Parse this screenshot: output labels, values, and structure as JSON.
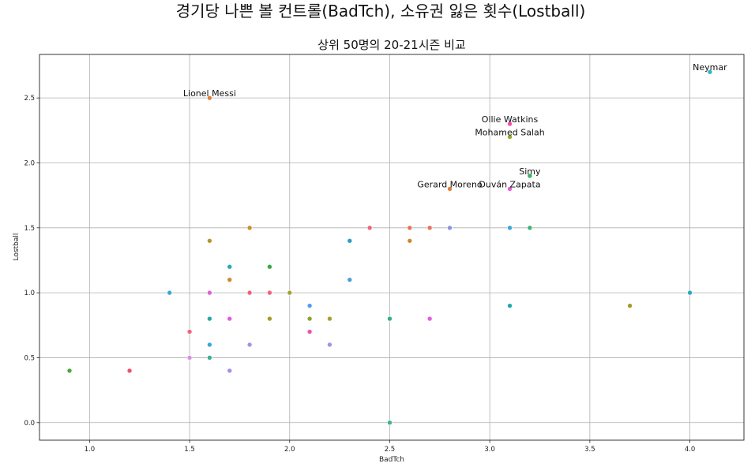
{
  "chart_data": {
    "type": "scatter",
    "suptitle": "경기당 나쁜 볼 컨트롤(BadTch), 소유권 잃은 횟수(Lostball)",
    "title": "상위 50명의 20-21시즌 비교",
    "xlabel": "BadTch",
    "ylabel": "Lostball",
    "xlim": [
      0.75,
      4.27
    ],
    "ylim": [
      -0.135,
      2.835
    ],
    "xticks": [
      1.0,
      1.5,
      2.0,
      2.5,
      3.0,
      3.5,
      4.0
    ],
    "yticks": [
      0.0,
      0.5,
      1.0,
      1.5,
      2.0,
      2.5
    ],
    "xtick_labels": [
      "1.0",
      "1.5",
      "2.0",
      "2.5",
      "3.0",
      "3.5",
      "4.0"
    ],
    "ytick_labels": [
      "0.0",
      "0.5",
      "1.0",
      "1.5",
      "2.0",
      "2.5"
    ],
    "grid": true,
    "points": [
      {
        "x": 4.1,
        "y": 2.7,
        "color": "#2fb5c4"
      },
      {
        "x": 1.6,
        "y": 2.5,
        "color": "#e0813a"
      },
      {
        "x": 3.1,
        "y": 2.3,
        "color": "#f24fb1"
      },
      {
        "x": 3.1,
        "y": 2.2,
        "color": "#9ca826"
      },
      {
        "x": 3.2,
        "y": 1.9,
        "color": "#39b36b"
      },
      {
        "x": 2.8,
        "y": 1.8,
        "color": "#e0813a"
      },
      {
        "x": 3.1,
        "y": 1.8,
        "color": "#e25ddc"
      },
      {
        "x": 1.8,
        "y": 1.5,
        "color": "#c8902a"
      },
      {
        "x": 2.4,
        "y": 1.5,
        "color": "#f2627a"
      },
      {
        "x": 2.6,
        "y": 1.5,
        "color": "#e5735b"
      },
      {
        "x": 2.7,
        "y": 1.5,
        "color": "#e5735b"
      },
      {
        "x": 2.8,
        "y": 1.5,
        "color": "#8f8fe8"
      },
      {
        "x": 3.1,
        "y": 1.5,
        "color": "#3aa7d8"
      },
      {
        "x": 3.2,
        "y": 1.5,
        "color": "#3cb37a"
      },
      {
        "x": 1.6,
        "y": 1.4,
        "color": "#b7952a"
      },
      {
        "x": 2.3,
        "y": 1.4,
        "color": "#2a9fc2"
      },
      {
        "x": 2.6,
        "y": 1.4,
        "color": "#c88c2d"
      },
      {
        "x": 1.7,
        "y": 1.2,
        "color": "#2aa9b9"
      },
      {
        "x": 1.9,
        "y": 1.2,
        "color": "#3aa84a"
      },
      {
        "x": 1.7,
        "y": 1.1,
        "color": "#c88c2d"
      },
      {
        "x": 2.3,
        "y": 1.1,
        "color": "#4aa0d8"
      },
      {
        "x": 1.4,
        "y": 1.0,
        "color": "#3aa7d8"
      },
      {
        "x": 1.6,
        "y": 1.0,
        "color": "#e25ddc"
      },
      {
        "x": 1.8,
        "y": 1.0,
        "color": "#f2627a"
      },
      {
        "x": 1.9,
        "y": 1.0,
        "color": "#f2627a"
      },
      {
        "x": 2.0,
        "y": 1.0,
        "color": "#a3a52a"
      },
      {
        "x": 4.0,
        "y": 1.0,
        "color": "#2aa9b9"
      },
      {
        "x": 2.1,
        "y": 0.9,
        "color": "#5a9ce8"
      },
      {
        "x": 3.1,
        "y": 0.9,
        "color": "#22a8b0"
      },
      {
        "x": 3.7,
        "y": 0.9,
        "color": "#a89a2a"
      },
      {
        "x": 1.6,
        "y": 0.8,
        "color": "#22a8a8"
      },
      {
        "x": 1.7,
        "y": 0.8,
        "color": "#e25ddc"
      },
      {
        "x": 1.9,
        "y": 0.8,
        "color": "#a89a2a"
      },
      {
        "x": 2.1,
        "y": 0.8,
        "color": "#8fa12a"
      },
      {
        "x": 2.2,
        "y": 0.8,
        "color": "#a8a02a"
      },
      {
        "x": 2.5,
        "y": 0.8,
        "color": "#2fae8a"
      },
      {
        "x": 2.7,
        "y": 0.8,
        "color": "#e25ddc"
      },
      {
        "x": 1.5,
        "y": 0.7,
        "color": "#f2627a"
      },
      {
        "x": 2.1,
        "y": 0.7,
        "color": "#f24fb1"
      },
      {
        "x": 1.6,
        "y": 0.6,
        "color": "#3aa7d8"
      },
      {
        "x": 1.8,
        "y": 0.6,
        "color": "#a98ee8"
      },
      {
        "x": 2.2,
        "y": 0.6,
        "color": "#a98ee8"
      },
      {
        "x": 1.5,
        "y": 0.5,
        "color": "#d98ee8"
      },
      {
        "x": 1.6,
        "y": 0.5,
        "color": "#3aae9a"
      },
      {
        "x": 1.7,
        "y": 0.4,
        "color": "#a98ee8"
      },
      {
        "x": 0.9,
        "y": 0.4,
        "color": "#4aa83a"
      },
      {
        "x": 1.2,
        "y": 0.4,
        "color": "#f24f6a"
      },
      {
        "x": 2.5,
        "y": 0.0,
        "color": "#3cb38a"
      }
    ],
    "annotations": [
      {
        "text": "Neymar",
        "x": 4.1,
        "y": 2.7
      },
      {
        "text": "Lionel Messi",
        "x": 1.6,
        "y": 2.5
      },
      {
        "text": "Ollie Watkins",
        "x": 3.1,
        "y": 2.3
      },
      {
        "text": "Mohamed Salah",
        "x": 3.1,
        "y": 2.2
      },
      {
        "text": "Simy",
        "x": 3.2,
        "y": 1.9
      },
      {
        "text": "Gerard Moreno",
        "x": 2.8,
        "y": 1.8
      },
      {
        "text": "Duván Zapata",
        "x": 3.1,
        "y": 1.8
      }
    ]
  }
}
